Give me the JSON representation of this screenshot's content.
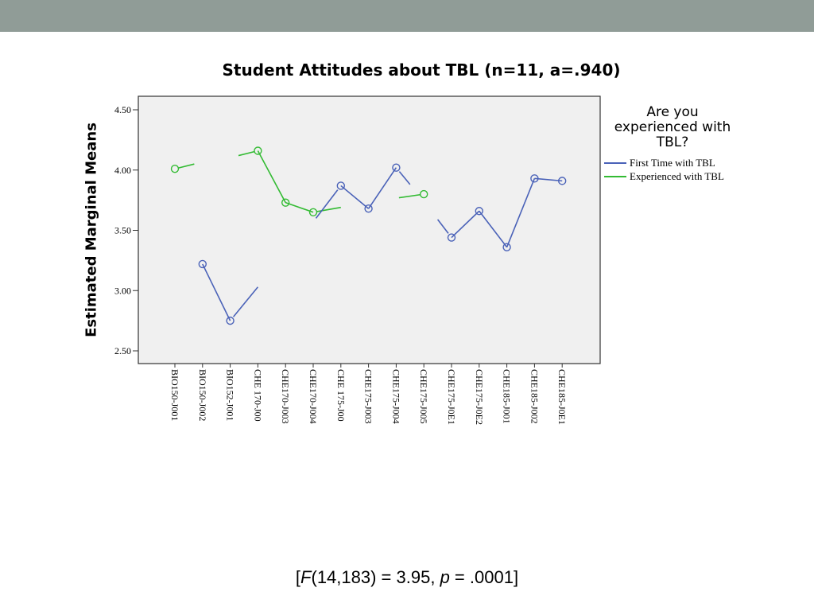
{
  "chart_data": {
    "type": "line",
    "title": "Student Attitudes about TBL (n=11, a=.940)",
    "ylabel": "Estimated Marginal Means",
    "xlabel": "",
    "ylim": [
      2.5,
      4.5
    ],
    "yticks": [
      "2.50",
      "3.00",
      "3.50",
      "4.00",
      "4.50"
    ],
    "categories": [
      "BIO150-J001",
      "BIO150-J002",
      "BIO152-J001",
      "CHE 170-J00",
      "CHE170-J003",
      "CHE170-J004",
      "CHE 175-J00",
      "CHE175-J003",
      "CHE175-J004",
      "CHE175-J005",
      "CHE175-J0E1",
      "CHE175-J0E2",
      "CHE185-J001",
      "CHE185-J002",
      "CHE185-J0E1"
    ],
    "legend_title": "Are you experienced with TBL?",
    "legend_position": "right",
    "grid": false,
    "series": [
      {
        "name": "First Time with TBL",
        "color": "#4a62b8",
        "values": [
          null,
          3.22,
          2.75,
          null,
          null,
          null,
          3.87,
          3.68,
          4.02,
          null,
          3.44,
          3.66,
          3.36,
          3.93,
          3.91
        ]
      },
      {
        "name": "Experienced with TBL",
        "color": "#33bb33",
        "values": [
          4.01,
          null,
          null,
          4.16,
          3.73,
          3.65,
          null,
          null,
          null,
          3.8,
          null,
          null,
          null,
          null,
          null
        ]
      }
    ]
  },
  "footnote": {
    "open": "[",
    "f": "F",
    "stat": "(14,183) = 3.95, ",
    "p": "p",
    "rest": " = .0001]"
  }
}
